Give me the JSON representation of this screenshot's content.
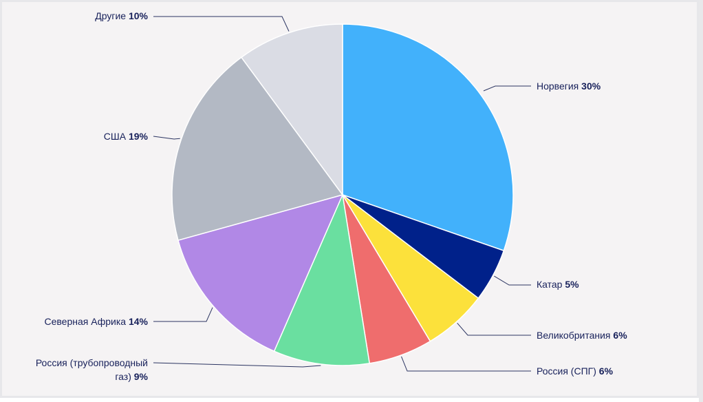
{
  "chart_data": {
    "type": "pie",
    "title": "",
    "slices": [
      {
        "label": "Норвегия",
        "pct_label": "30%",
        "value": 30,
        "color": "#42b1fb"
      },
      {
        "label": "Катар",
        "pct_label": "5%",
        "value": 5,
        "color": "#00218a"
      },
      {
        "label": "Великобритания",
        "pct_label": "6%",
        "value": 6,
        "color": "#fce13b"
      },
      {
        "label": "Россия (СПГ)",
        "pct_label": "6%",
        "value": 6,
        "color": "#ef6d6d"
      },
      {
        "label": "Россия (трубопроводный газ)",
        "label_lines": [
          "Россия (трубопроводный",
          "газ)"
        ],
        "pct_label": "9%",
        "value": 9,
        "color": "#6adfa0"
      },
      {
        "label": "Северная Африка",
        "pct_label": "14%",
        "value": 14,
        "color": "#b188e6"
      },
      {
        "label": "США",
        "pct_label": "19%",
        "value": 19,
        "color": "#b3b9c4"
      },
      {
        "label": "Другие",
        "pct_label": "10%",
        "value": 10,
        "color": "#dadce4"
      }
    ]
  }
}
